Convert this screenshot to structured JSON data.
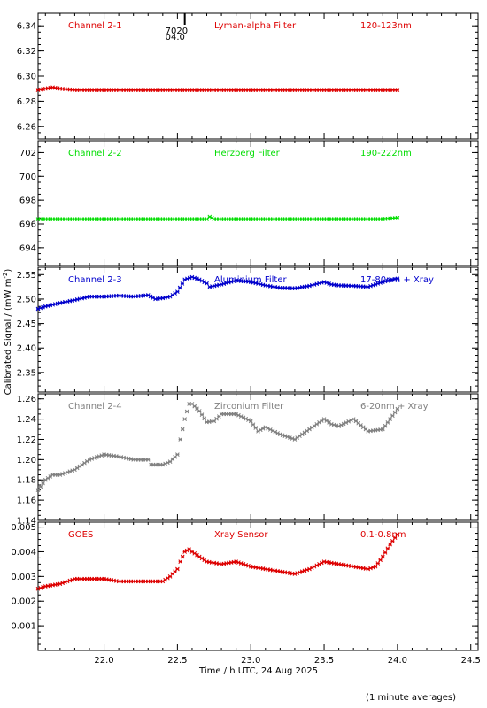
{
  "shared": {
    "x_axis": {
      "label": "Time / h UTC, 24 Aug 2025",
      "range": [
        21.55,
        24.55
      ],
      "ticks": [
        "22.0",
        "22.5",
        "23.0",
        "23.5",
        "24.0",
        "24.5"
      ],
      "tick_values": [
        22.0,
        22.5,
        23.0,
        23.5,
        24.0,
        24.5
      ],
      "minor_step": 0.1
    },
    "y_axis_label": "Calibrated Signal / (mW m",
    "y_axis_label_sup": "-2",
    "y_axis_label_end": ")",
    "footer_note": "(1 minute averages)",
    "marker": {
      "x": 22.55,
      "label_top": "7020",
      "label_bottom": "04.0"
    }
  },
  "chart_data": [
    {
      "type": "scatter",
      "channel": "Channel 2-1",
      "filter": "Lyman-alpha Filter",
      "band": "120-123nm",
      "color": "#dd0000",
      "ylim": [
        6.25,
        6.35
      ],
      "y_ticks": [
        "6.26",
        "6.28",
        "6.30",
        "6.32",
        "6.34"
      ],
      "y_tick_values": [
        6.26,
        6.28,
        6.3,
        6.32,
        6.34
      ],
      "series": [
        {
          "x": [
            21.55,
            21.6,
            21.65,
            21.7,
            21.8,
            22.0,
            22.3,
            22.6,
            23.0,
            23.3,
            23.6,
            23.9,
            24.0
          ],
          "y": [
            6.289,
            6.29,
            6.291,
            6.29,
            6.289,
            6.289,
            6.289,
            6.289,
            6.289,
            6.289,
            6.289,
            6.289,
            6.289
          ]
        }
      ]
    },
    {
      "type": "scatter",
      "channel": "Channel 2-2",
      "filter": "Herzberg Filter",
      "band": "190-222nm",
      "color": "#00dd00",
      "ylim": [
        692.5,
        703.0
      ],
      "y_ticks": [
        "694",
        "696",
        "698",
        "700",
        "702"
      ],
      "y_tick_values": [
        694,
        696,
        698,
        700,
        702
      ],
      "series": [
        {
          "x": [
            21.55,
            21.8,
            22.1,
            22.4,
            22.7,
            22.72,
            22.75,
            23.0,
            23.3,
            23.6,
            23.9,
            24.0
          ],
          "y": [
            696.4,
            696.4,
            696.4,
            696.4,
            696.4,
            696.6,
            696.4,
            696.4,
            696.4,
            696.4,
            696.4,
            696.5
          ]
        }
      ]
    },
    {
      "type": "scatter",
      "channel": "Channel 2-3",
      "filter": "Aluminium Filter",
      "band": "17-80nm + Xray",
      "color": "#0000cc",
      "ylim": [
        2.31,
        2.565
      ],
      "y_ticks": [
        "2.35",
        "2.40",
        "2.45",
        "2.50",
        "2.55"
      ],
      "y_tick_values": [
        2.35,
        2.4,
        2.45,
        2.5,
        2.55
      ],
      "series": [
        {
          "x": [
            21.55,
            21.6,
            21.7,
            21.8,
            21.9,
            22.0,
            22.1,
            22.2,
            22.3,
            22.35,
            22.4,
            22.45,
            22.5,
            22.55,
            22.6,
            22.65,
            22.7,
            22.72,
            22.8,
            22.9,
            23.0,
            23.1,
            23.2,
            23.3,
            23.4,
            23.5,
            23.55,
            23.6,
            23.7,
            23.8,
            23.9,
            24.0
          ],
          "y": [
            2.48,
            2.485,
            2.492,
            2.498,
            2.505,
            2.505,
            2.507,
            2.505,
            2.508,
            2.5,
            2.502,
            2.505,
            2.515,
            2.54,
            2.545,
            2.54,
            2.532,
            2.525,
            2.53,
            2.538,
            2.535,
            2.528,
            2.523,
            2.522,
            2.527,
            2.535,
            2.53,
            2.528,
            2.527,
            2.525,
            2.535,
            2.542
          ]
        }
      ]
    },
    {
      "type": "scatter",
      "channel": "Channel 2-4",
      "filter": "Zirconium Filter",
      "band": "6-20nm + Xray",
      "color": "#808080",
      "ylim": [
        1.14,
        1.265
      ],
      "y_ticks": [
        "1.14",
        "1.16",
        "1.18",
        "1.20",
        "1.22",
        "1.24",
        "1.26"
      ],
      "y_tick_values": [
        1.14,
        1.16,
        1.18,
        1.2,
        1.22,
        1.24,
        1.26
      ],
      "series": [
        {
          "x": [
            21.55,
            21.6,
            21.65,
            21.7,
            21.8,
            21.9,
            22.0,
            22.1,
            22.2,
            22.3,
            22.32,
            22.4,
            22.45,
            22.5,
            22.52,
            22.55,
            22.58,
            22.6,
            22.65,
            22.7,
            22.75,
            22.8,
            22.9,
            23.0,
            23.05,
            23.1,
            23.2,
            23.3,
            23.4,
            23.5,
            23.55,
            23.6,
            23.7,
            23.8,
            23.9,
            24.0
          ],
          "y": [
            1.17,
            1.18,
            1.185,
            1.185,
            1.19,
            1.2,
            1.205,
            1.203,
            1.2,
            1.2,
            1.195,
            1.195,
            1.198,
            1.205,
            1.22,
            1.24,
            1.255,
            1.255,
            1.248,
            1.237,
            1.238,
            1.245,
            1.245,
            1.238,
            1.228,
            1.232,
            1.225,
            1.22,
            1.23,
            1.24,
            1.235,
            1.233,
            1.24,
            1.228,
            1.23,
            1.25
          ]
        }
      ]
    },
    {
      "type": "scatter",
      "channel": "GOES",
      "filter": "Xray Sensor",
      "band": "0.1-0.8nm",
      "color": "#dd0000",
      "ylim": [
        0.0,
        0.0052
      ],
      "y_ticks": [
        "0.001",
        "0.002",
        "0.003",
        "0.004",
        "0.005"
      ],
      "y_tick_values": [
        0.001,
        0.002,
        0.003,
        0.004,
        0.005
      ],
      "series": [
        {
          "x": [
            21.55,
            21.6,
            21.7,
            21.8,
            21.9,
            22.0,
            22.1,
            22.2,
            22.3,
            22.4,
            22.45,
            22.5,
            22.52,
            22.55,
            22.58,
            22.6,
            22.65,
            22.7,
            22.8,
            22.9,
            23.0,
            23.1,
            23.2,
            23.3,
            23.4,
            23.5,
            23.6,
            23.7,
            23.8,
            23.85,
            23.9,
            23.95,
            24.0
          ],
          "y": [
            0.0025,
            0.0026,
            0.0027,
            0.0029,
            0.0029,
            0.0029,
            0.0028,
            0.0028,
            0.0028,
            0.0028,
            0.003,
            0.0033,
            0.0036,
            0.004,
            0.0041,
            0.004,
            0.0038,
            0.0036,
            0.0035,
            0.0036,
            0.0034,
            0.0033,
            0.0032,
            0.0031,
            0.0033,
            0.0036,
            0.0035,
            0.0034,
            0.0033,
            0.0034,
            0.0038,
            0.0043,
            0.0047
          ]
        }
      ]
    }
  ]
}
